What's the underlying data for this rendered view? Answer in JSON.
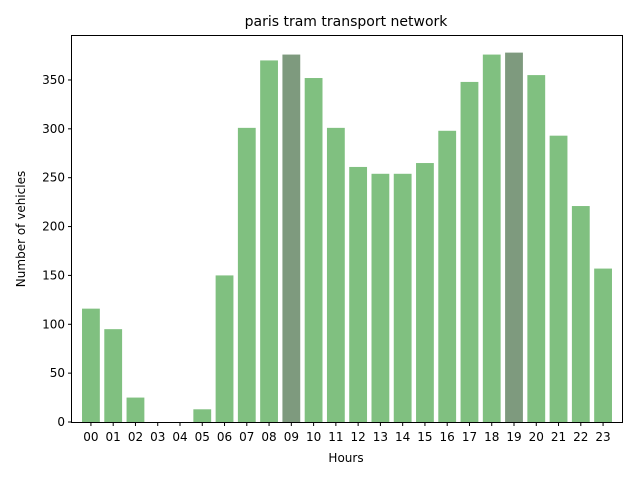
{
  "chart_data": {
    "type": "bar",
    "title": "paris tram transport network",
    "xlabel": "Hours",
    "ylabel": "Number of vehicles",
    "ylim": [
      0,
      395
    ],
    "yticks": [
      0,
      50,
      100,
      150,
      200,
      250,
      300,
      350
    ],
    "categories": [
      "00",
      "01",
      "02",
      "03",
      "04",
      "05",
      "06",
      "07",
      "08",
      "09",
      "10",
      "11",
      "12",
      "13",
      "14",
      "15",
      "16",
      "17",
      "18",
      "19",
      "20",
      "21",
      "22",
      "23"
    ],
    "values": [
      116,
      95,
      25,
      0,
      0,
      13,
      150,
      301,
      370,
      376,
      352,
      301,
      261,
      254,
      254,
      265,
      298,
      348,
      376,
      378,
      355,
      293,
      221,
      157
    ],
    "highlight_indices": [
      9,
      19
    ],
    "colors": {
      "bar": "#80c080",
      "highlight": "#7e9a7e"
    },
    "grid": false,
    "legend": null
  }
}
